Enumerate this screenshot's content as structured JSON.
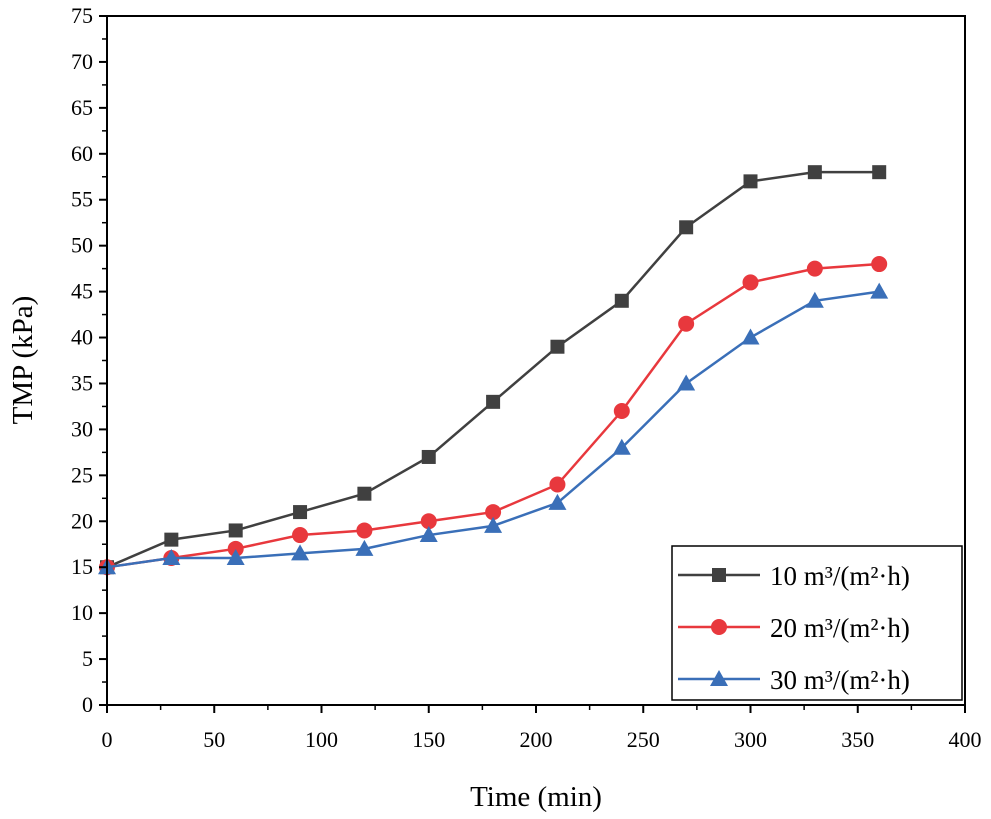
{
  "chart_data": {
    "type": "line",
    "title": "",
    "xlabel": "Time (min)",
    "ylabel": "TMP (kPa)",
    "xlim": [
      0,
      400
    ],
    "ylim": [
      0,
      75
    ],
    "xticks": [
      0,
      50,
      100,
      150,
      200,
      250,
      300,
      350,
      400
    ],
    "yticks": [
      0,
      5,
      10,
      15,
      20,
      25,
      30,
      35,
      40,
      45,
      50,
      55,
      60,
      65,
      70,
      75
    ],
    "grid": false,
    "legend_position": "bottom-right",
    "x": [
      0,
      30,
      60,
      90,
      120,
      150,
      180,
      210,
      240,
      270,
      300,
      330,
      360
    ],
    "series": [
      {
        "name": "10 m³/(m²·h)",
        "color": "#404040",
        "marker": "square",
        "values": [
          15,
          18,
          19,
          21,
          23,
          27,
          33,
          39,
          44,
          52,
          57,
          58,
          58
        ]
      },
      {
        "name": "20 m³/(m²·h)",
        "color": "#e8383d",
        "marker": "circle",
        "values": [
          15,
          16,
          17,
          18.5,
          19,
          20,
          21,
          24,
          32,
          41.5,
          46,
          47.5,
          48
        ]
      },
      {
        "name": "30 m³/(m²·h)",
        "color": "#3a6fb8",
        "marker": "triangle",
        "values": [
          15,
          16,
          16,
          16.5,
          17,
          18.5,
          19.5,
          22,
          28,
          35,
          40,
          44,
          45
        ]
      }
    ]
  }
}
